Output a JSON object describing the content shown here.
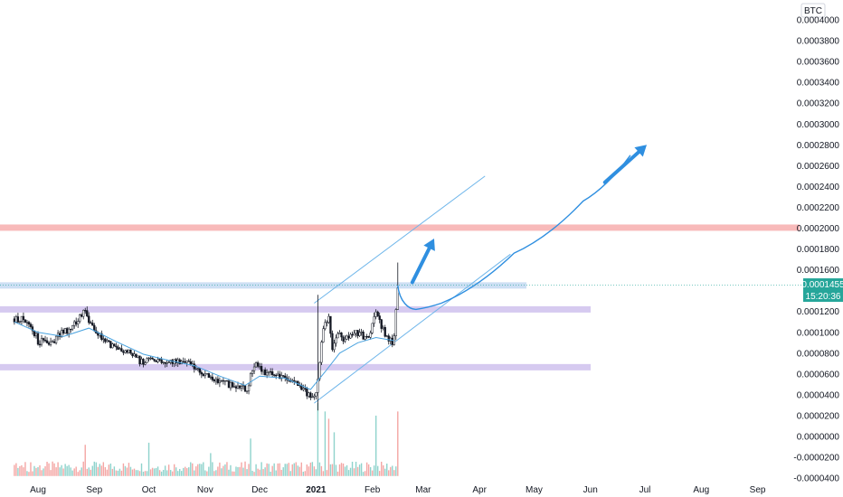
{
  "chart_data": {
    "type": "candlestick",
    "currency_label": "BTC",
    "y_ticks": [
      "0.0004000",
      "0.0003800",
      "0.0003600",
      "0.0003400",
      "0.0003200",
      "0.0003000",
      "0.0002800",
      "0.0002600",
      "0.0002400",
      "0.0002200",
      "0.0002000",
      "0.0001800",
      "0.0001600",
      "0.0001200",
      "0.0001000",
      "0.0000800",
      "0.0000600",
      "0.0000400",
      "0.0000200",
      "0.0000000",
      "-0.0000200",
      "-0.0000400"
    ],
    "y_tick_values": [
      0.0004,
      0.00038,
      0.00036,
      0.00034,
      0.00032,
      0.0003,
      0.00028,
      0.00026,
      0.00024,
      0.00022,
      0.0002,
      0.00018,
      0.00016,
      0.00012,
      0.0001,
      8e-05,
      6e-05,
      4e-05,
      2e-05,
      0.0,
      -2e-05,
      -4e-05
    ],
    "ylim": [
      -4e-05,
      0.0004
    ],
    "x_ticks": [
      {
        "label": "Aug",
        "bold": false
      },
      {
        "label": "Sep",
        "bold": false
      },
      {
        "label": "Oct",
        "bold": false
      },
      {
        "label": "Nov",
        "bold": false
      },
      {
        "label": "Dec",
        "bold": false
      },
      {
        "label": "2021",
        "bold": true
      },
      {
        "label": "Feb",
        "bold": false
      },
      {
        "label": "Mar",
        "bold": false
      },
      {
        "label": "Apr",
        "bold": false
      },
      {
        "label": "May",
        "bold": false
      },
      {
        "label": "Jun",
        "bold": false
      },
      {
        "label": "Jul",
        "bold": false
      },
      {
        "label": "Aug",
        "bold": false
      },
      {
        "label": "Sep",
        "bold": false
      }
    ],
    "x_tick_days": [
      0,
      31,
      61,
      92,
      122,
      153,
      184,
      212,
      243,
      273,
      304,
      334,
      365,
      396
    ],
    "last_price_label": "0.0001455",
    "last_price_value": 0.0001455,
    "countdown_label": "15:20:36",
    "close_path": [
      [
        -13,
        0.000113
      ],
      [
        -8,
        0.000112
      ],
      [
        -4,
        0.000108
      ],
      [
        0,
        9.2e-05
      ],
      [
        6,
        8.8e-05
      ],
      [
        12,
        9.8e-05
      ],
      [
        18,
        0.000104
      ],
      [
        22,
        0.000112
      ],
      [
        26,
        0.000122
      ],
      [
        28,
        0.00011
      ],
      [
        32,
        0.0001
      ],
      [
        36,
        9.2e-05
      ],
      [
        42,
        8.7e-05
      ],
      [
        48,
        8.2e-05
      ],
      [
        54,
        7.7e-05
      ],
      [
        58,
        6.9e-05
      ],
      [
        62,
        7.5e-05
      ],
      [
        66,
        7.4e-05
      ],
      [
        72,
        7.2e-05
      ],
      [
        78,
        7.3e-05
      ],
      [
        82,
        7e-05
      ],
      [
        86,
        6.5e-05
      ],
      [
        92,
        6e-05
      ],
      [
        98,
        5.5e-05
      ],
      [
        104,
        5e-05
      ],
      [
        110,
        4.7e-05
      ],
      [
        114,
        4.5e-05
      ],
      [
        116,
        4.6e-05
      ],
      [
        117,
        6.2e-05
      ],
      [
        120,
        6.8e-05
      ],
      [
        124,
        6.2e-05
      ],
      [
        130,
        5.8e-05
      ],
      [
        136,
        5.4e-05
      ],
      [
        140,
        5.2e-05
      ],
      [
        144,
        4.8e-05
      ],
      [
        148,
        4.2e-05
      ],
      [
        151,
        3.7e-05
      ],
      [
        153,
        4.5e-05
      ],
      [
        155,
        7e-05
      ],
      [
        157,
        0.000105
      ],
      [
        160,
        0.000112
      ],
      [
        162,
        8.5e-05
      ],
      [
        165,
        0.000102
      ],
      [
        168,
        9.4e-05
      ],
      [
        172,
        9.6e-05
      ],
      [
        176,
        0.0001
      ],
      [
        180,
        9.5e-05
      ],
      [
        183,
        9.8e-05
      ],
      [
        186,
        0.00012
      ],
      [
        189,
        0.000105
      ],
      [
        192,
        9.4e-05
      ],
      [
        195,
        9e-05
      ],
      [
        196,
        9.8e-05
      ],
      [
        198,
        0.000145
      ]
    ],
    "ma_path": [
      [
        -13,
        0.00011
      ],
      [
        0,
        0.0001
      ],
      [
        14,
        9.6e-05
      ],
      [
        28,
        0.000104
      ],
      [
        42,
        9.2e-05
      ],
      [
        58,
        7.9e-05
      ],
      [
        72,
        7.3e-05
      ],
      [
        86,
        6.8e-05
      ],
      [
        100,
        5.8e-05
      ],
      [
        114,
        4.9e-05
      ],
      [
        122,
        5.8e-05
      ],
      [
        136,
        5.6e-05
      ],
      [
        150,
        4.5e-05
      ],
      [
        158,
        6.2e-05
      ],
      [
        166,
        8e-05
      ],
      [
        176,
        9e-05
      ],
      [
        186,
        9.5e-05
      ],
      [
        196,
        9.2e-05
      ]
    ],
    "volume_spikes": [
      [
        26,
        0.0003
      ],
      [
        61,
        0.00032
      ],
      [
        95,
        0.00022
      ],
      [
        117,
        0.00036
      ],
      [
        154,
        0.0007
      ],
      [
        158,
        0.00062
      ],
      [
        160,
        0.00055
      ],
      [
        163,
        0.00042
      ],
      [
        186,
        0.00058
      ],
      [
        198,
        0.00062
      ]
    ],
    "horizontal_zones": [
      {
        "value": 0.0002005,
        "color": "#f7b3b3"
      },
      {
        "value": 0.000145,
        "color": "#c8dbf3"
      },
      {
        "value": 0.000122,
        "color": "#d1c4ee"
      },
      {
        "value": 6.65e-05,
        "color": "#d1c4ee"
      }
    ],
    "channel": {
      "upper": [
        [
          152,
          0.000128
        ],
        [
          246,
          0.00025
        ]
      ],
      "lower": [
        [
          152,
          3.2e-05
        ],
        [
          260,
          0.000175
        ]
      ]
    },
    "projection_curve": [
      [
        198,
        0.000145
      ],
      [
        208,
        0.000122
      ],
      [
        222,
        0.000128
      ],
      [
        262,
        0.000176
      ],
      [
        300,
        0.000226
      ],
      [
        326,
        0.00027
      ]
    ],
    "arrows": [
      {
        "from": [
          206,
          0.000148
        ],
        "to": [
          218,
          0.00019
        ]
      },
      {
        "from": [
          312,
          0.000244
        ],
        "to": [
          335,
          0.00028
        ]
      }
    ],
    "colors": {
      "up": "#26a69a",
      "down": "#ef5350",
      "candle": "#131722",
      "ma": "#4aa3df",
      "channel": "#6fb6ea",
      "projection": "#2f8fe0",
      "price_tag": "#26a69a",
      "axis_text": "#131722"
    }
  }
}
